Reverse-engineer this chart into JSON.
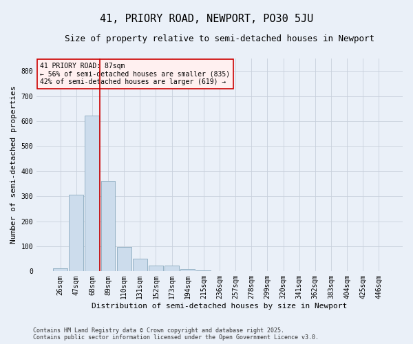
{
  "title": "41, PRIORY ROAD, NEWPORT, PO30 5JU",
  "subtitle": "Size of property relative to semi-detached houses in Newport",
  "xlabel": "Distribution of semi-detached houses by size in Newport",
  "ylabel": "Number of semi-detached properties",
  "categories": [
    "26sqm",
    "47sqm",
    "68sqm",
    "89sqm",
    "110sqm",
    "131sqm",
    "152sqm",
    "173sqm",
    "194sqm",
    "215sqm",
    "236sqm",
    "257sqm",
    "278sqm",
    "299sqm",
    "320sqm",
    "341sqm",
    "362sqm",
    "383sqm",
    "404sqm",
    "425sqm",
    "446sqm"
  ],
  "values": [
    13,
    305,
    621,
    362,
    97,
    50,
    24,
    22,
    10,
    5,
    1,
    0,
    0,
    0,
    0,
    0,
    0,
    0,
    0,
    0,
    0
  ],
  "bar_color": "#ccdcec",
  "bar_edge_color": "#8aaabe",
  "vline_x": 2.5,
  "vline_color": "#cc0000",
  "annotation_text": "41 PRIORY ROAD: 87sqm\n← 56% of semi-detached houses are smaller (835)\n42% of semi-detached houses are larger (619) →",
  "annotation_box_facecolor": "#fff0f0",
  "annotation_box_edgecolor": "#cc0000",
  "ylim": [
    0,
    850
  ],
  "yticks": [
    0,
    100,
    200,
    300,
    400,
    500,
    600,
    700,
    800
  ],
  "plot_bg": "#eaf0f8",
  "fig_bg": "#eaf0f8",
  "footer_line1": "Contains HM Land Registry data © Crown copyright and database right 2025.",
  "footer_line2": "Contains public sector information licensed under the Open Government Licence v3.0.",
  "title_fontsize": 11,
  "subtitle_fontsize": 9,
  "axis_label_fontsize": 8,
  "tick_fontsize": 7,
  "annotation_fontsize": 7,
  "footer_fontsize": 6
}
